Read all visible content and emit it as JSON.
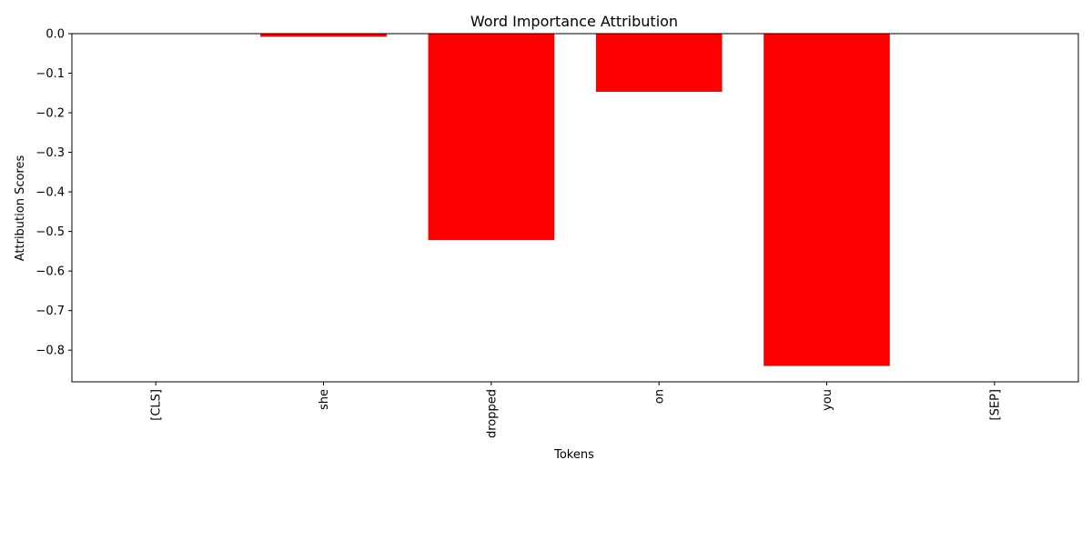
{
  "chart_data": {
    "type": "bar",
    "title": "Word Importance Attribution",
    "xlabel": "Tokens",
    "ylabel": "Attribution Scores",
    "categories": [
      "[CLS]",
      "she",
      "dropped",
      "on",
      "you",
      "[SEP]"
    ],
    "values": [
      0.0,
      -0.008,
      -0.522,
      -0.147,
      -0.84,
      0.0
    ],
    "ylim": [
      -0.88,
      0.0
    ],
    "yticks": [
      0.0,
      -0.1,
      -0.2,
      -0.3,
      -0.4,
      -0.5,
      -0.6,
      -0.7,
      -0.8
    ],
    "ytick_labels": [
      "0.0",
      "−0.1",
      "−0.2",
      "−0.3",
      "−0.4",
      "−0.5",
      "−0.6",
      "−0.7",
      "−0.8"
    ],
    "bar_color": "#ff0000",
    "grid": false,
    "legend": false
  }
}
